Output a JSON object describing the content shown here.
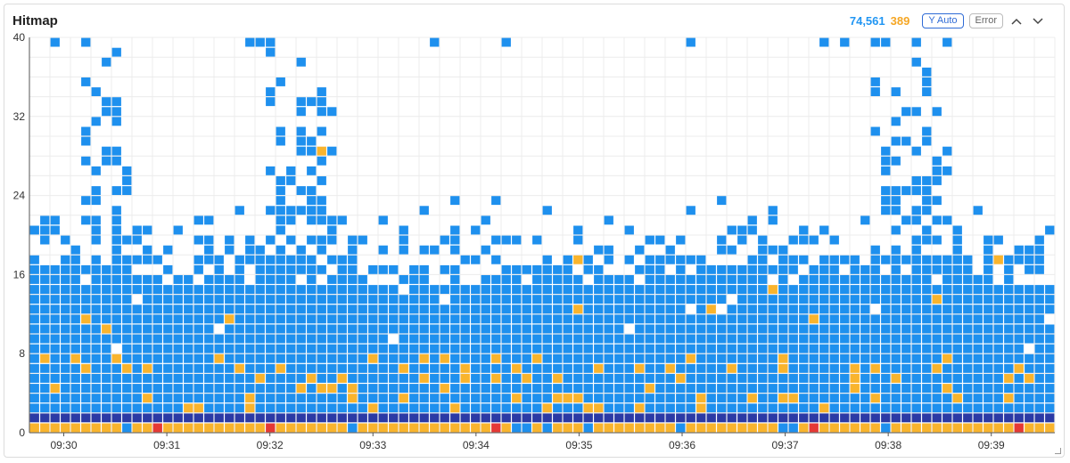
{
  "panel": {
    "title": "Hitmap",
    "total_count": "74,561",
    "error_count": "389",
    "y_auto_label": "Y Auto",
    "error_label": "Error"
  },
  "colors": {
    "normal": "#1e90ee",
    "warn": "#f9b42d",
    "error": "#e53935",
    "dense": "#2b3aa5",
    "grid": "#ececec"
  },
  "chart_data": {
    "type": "heatmap",
    "title": "Hitmap",
    "xlabel": "",
    "ylabel": "",
    "y_ticks": [
      0,
      8,
      16,
      24,
      32,
      40
    ],
    "ylim": [
      0,
      40
    ],
    "x_ticks": [
      "09:30",
      "09:31",
      "09:32",
      "09:33",
      "09:34",
      "09:35",
      "09:36",
      "09:37",
      "09:38",
      "09:39"
    ],
    "xlim": [
      "09:29:40",
      "09:39:37"
    ],
    "columns": 100,
    "rows": 40,
    "bottom_row_status": "mostly warn with scattered error cells",
    "second_row_status": "dense dark-blue band",
    "dense_fill_upper_row": 16,
    "sparse_scatter_max_row": 40,
    "spike_time_ranges": [
      [
        "09:30:10",
        "09:30:40"
      ],
      [
        "09:32:00",
        "09:32:40"
      ],
      [
        "09:37:50",
        "09:38:40"
      ]
    ]
  }
}
